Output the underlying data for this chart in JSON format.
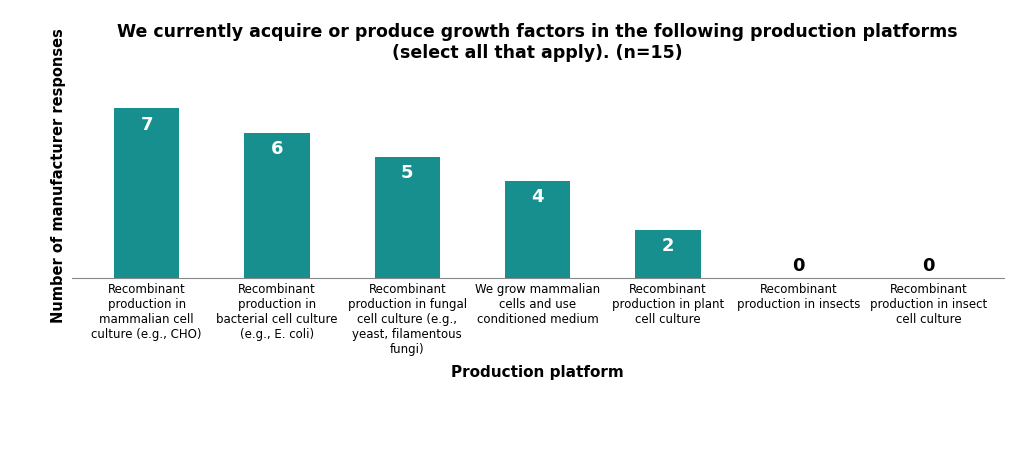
{
  "title": "We currently acquire or produce growth factors in the following production platforms\n(select all that apply). (n=15)",
  "xlabel": "Production platform",
  "ylabel": "Number of manufacturer responses",
  "categories": [
    "Recombinant\nproduction in\nmammalian cell\nculture (e.g., CHO)",
    "Recombinant\nproduction in\nbacterial cell culture\n(e.g., E. coli)",
    "Recombinant\nproduction in fungal\ncell culture (e.g.,\nyeast, filamentous\nfungi)",
    "We grow mammalian\ncells and use\nconditioned medium",
    "Recombinant\nproduction in plant\ncell culture",
    "Recombinant\nproduction in insects",
    "Recombinant\nproduction in insect\ncell culture"
  ],
  "values": [
    7,
    6,
    5,
    4,
    2,
    0,
    0
  ],
  "bar_color": "#178F8F",
  "label_color_inside": "#ffffff",
  "label_color_outside": "#000000",
  "background_color": "#ffffff",
  "title_fontsize": 12.5,
  "axis_label_fontsize": 11,
  "tick_label_fontsize": 8.5,
  "bar_label_fontsize": 13,
  "ylim": [
    0,
    8.5
  ],
  "bar_width": 0.5
}
